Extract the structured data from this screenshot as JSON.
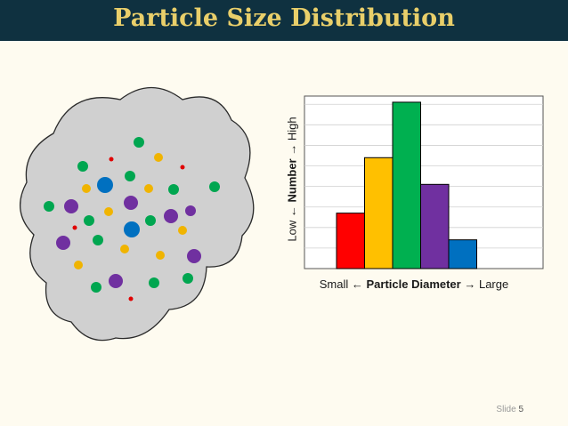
{
  "header": {
    "title": "Particle Size Distribution"
  },
  "footer": {
    "slide_label": "Slide",
    "slide_number": "5"
  },
  "chart_data": {
    "type": "bar",
    "title": "",
    "categories": [
      "",
      "",
      "",
      "",
      ""
    ],
    "values": [
      27,
      54,
      81,
      41,
      14
    ],
    "bar_colors": [
      "#ff0000",
      "#ffc000",
      "#00b050",
      "#7030a0",
      "#0070c0"
    ],
    "ylim": [
      0,
      84
    ],
    "xlabel": {
      "left": "Small ",
      "arrow_left": "←",
      "strong": "Particle Diameter",
      "arrow_right": "→",
      "right": " Large"
    },
    "ylabel": {
      "left": "Low ",
      "arrow_left": "←",
      "strong": "Number",
      "arrow_right": "→",
      "right": " High"
    },
    "grid": true
  },
  "cloud": {
    "fill": "#d0d0d0",
    "particle_colors": {
      "red": "#e00000",
      "yellow": "#f0b400",
      "green": "#00a650",
      "purple": "#7030a0",
      "blue": "#0070c0"
    }
  }
}
